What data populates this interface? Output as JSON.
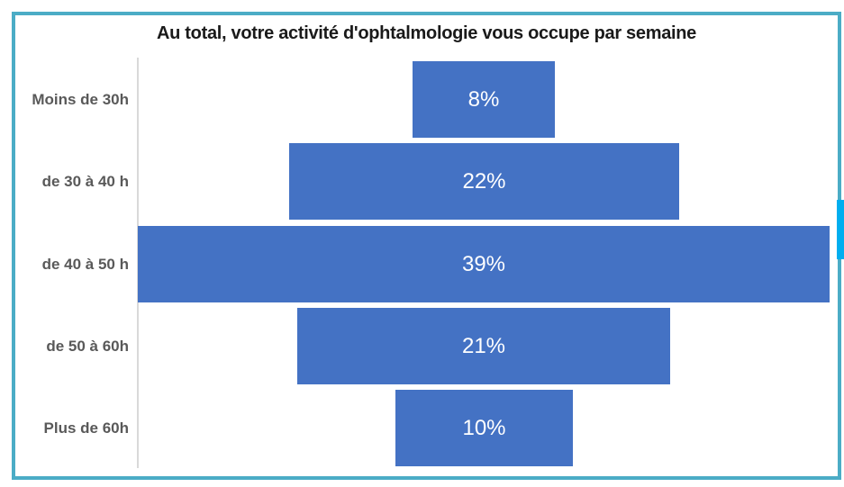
{
  "chart_data": {
    "type": "bar",
    "orientation": "horizontal",
    "style": "centered-funnel",
    "title": "Au total, votre activité d'ophtalmologie vous occupe par semaine",
    "categories": [
      "Moins de 30h",
      "de 30 à 40 h",
      "de 40 à 50 h",
      "de 50 à 60h",
      "Plus de 60h"
    ],
    "values": [
      8,
      22,
      39,
      21,
      10
    ],
    "value_labels": [
      "8%",
      "22%",
      "39%",
      "21%",
      "10%"
    ],
    "value_suffix": "%",
    "xlabel": "",
    "ylabel": "",
    "xlim": [
      0,
      39
    ],
    "grid": false,
    "legend": false,
    "bar_label_position": "inside-center"
  },
  "colors": {
    "bar": "#4472C4",
    "bar_label_text": "#FFFFFF",
    "frame_border": "#4BACC6",
    "axis_line": "#D9D9D9",
    "category_label": "#595959",
    "title_text": "#1A1A1A",
    "scrollbar_thumb": "#00AEEF",
    "background": "#FFFFFF"
  },
  "scrollbar": {
    "thumb_visible": true
  }
}
